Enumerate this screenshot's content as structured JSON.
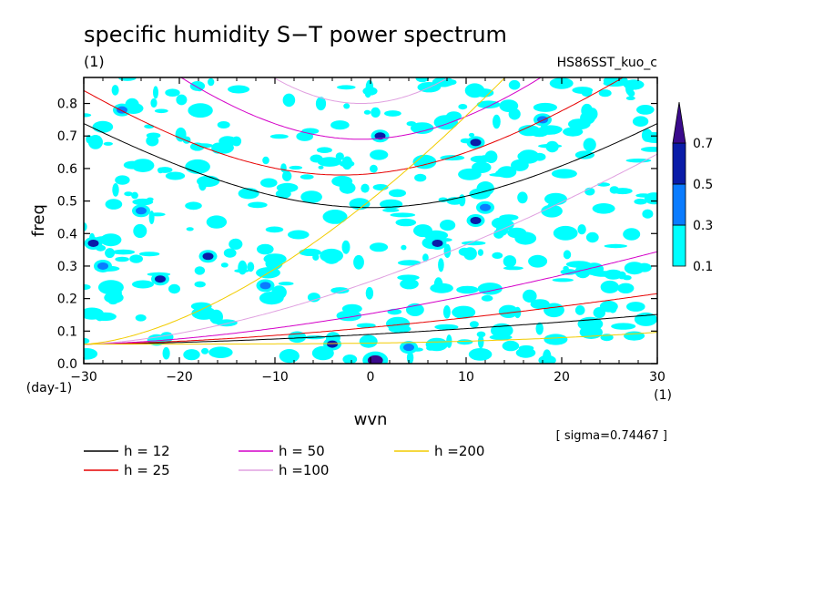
{
  "chart_data": {
    "type": "heatmap",
    "title": "specific humidity S−T power spectrum",
    "subtitle_left": "(1)",
    "subtitle_right": "HS86SST_kuo_c",
    "xlabel": "wvn",
    "xunit": "(1)",
    "ylabel": "freq",
    "yunit": "(day-1)",
    "xlim": [
      -30,
      30
    ],
    "ylim": [
      0,
      0.88
    ],
    "xticks": [
      -30,
      -20,
      -10,
      0,
      10,
      20,
      30
    ],
    "xtick_labels": [
      "−30",
      "−20",
      "−10",
      "0",
      "10",
      "20",
      "30"
    ],
    "yticks": [
      0,
      0.1,
      0.2,
      0.3,
      0.4,
      0.5,
      0.6,
      0.7,
      0.8
    ],
    "ytick_labels": [
      "0.0",
      "0.1",
      "0.2",
      "0.3",
      "0.4",
      "0.5",
      "0.6",
      "0.7",
      "0.8"
    ],
    "note": "[ sigma=0.74467 ]",
    "colorbar": {
      "levels": [
        0.1,
        0.3,
        0.5,
        0.7
      ],
      "labels": [
        "0.1",
        "0.3",
        "0.5",
        "0.7"
      ],
      "colors": [
        "#00ffff",
        "#0a7cff",
        "#0a1ca8",
        "#3a0a8c"
      ]
    },
    "shading_samples": [
      {
        "x": 0.5,
        "y": 0.01,
        "level": 0.7
      },
      {
        "x": -29,
        "y": 0.37,
        "level": 0.5
      },
      {
        "x": -17,
        "y": 0.33,
        "level": 0.5
      },
      {
        "x": -4,
        "y": 0.06,
        "level": 0.5
      },
      {
        "x": 11,
        "y": 0.44,
        "level": 0.5
      },
      {
        "x": 7,
        "y": 0.37,
        "level": 0.5
      },
      {
        "x": 1,
        "y": 0.7,
        "level": 0.5
      },
      {
        "x": 11,
        "y": 0.68,
        "level": 0.5
      },
      {
        "x": -22,
        "y": 0.26,
        "level": 0.5
      },
      {
        "x": -28,
        "y": 0.3,
        "level": 0.3
      },
      {
        "x": -24,
        "y": 0.47,
        "level": 0.3
      },
      {
        "x": -11,
        "y": 0.24,
        "level": 0.3
      },
      {
        "x": 4,
        "y": 0.05,
        "level": 0.3
      },
      {
        "x": 12,
        "y": 0.48,
        "level": 0.3
      },
      {
        "x": -26,
        "y": 0.78,
        "level": 0.3
      },
      {
        "x": 18,
        "y": 0.75,
        "level": 0.3
      }
    ],
    "series": [
      {
        "name": "h = 12",
        "color": "#000000",
        "h": 12
      },
      {
        "name": "h = 25",
        "color": "#e60000",
        "h": 25
      },
      {
        "name": "h = 50",
        "color": "#d400c8",
        "h": 50
      },
      {
        "name": "h =100",
        "color": "#e0a0e0",
        "h": 100
      },
      {
        "name": "h =200",
        "color": "#f2cc00",
        "h": 200
      }
    ],
    "legend_position": "bottom-left"
  }
}
